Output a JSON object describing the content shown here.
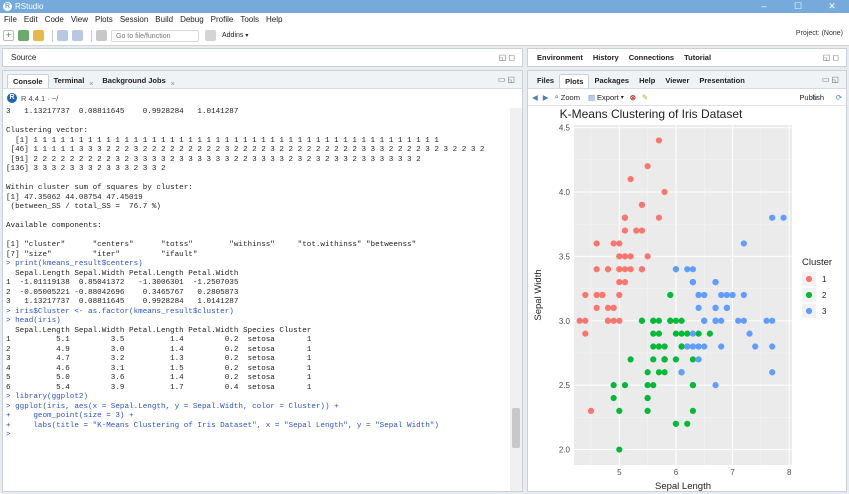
{
  "app": {
    "title": "RStudio",
    "window_controls": [
      "–",
      "☐",
      "✕"
    ]
  },
  "menu": [
    "File",
    "Edit",
    "Code",
    "View",
    "Plots",
    "Session",
    "Build",
    "Debug",
    "Profile",
    "Tools",
    "Help"
  ],
  "toolbar": {
    "goto_placeholder": "Go to file/function",
    "addins_label": "Addins",
    "project_label": "Project: (None)"
  },
  "source_pane": {
    "title": "Source"
  },
  "console_pane": {
    "tabs": [
      "Console",
      "Terminal",
      "Background Jobs"
    ],
    "r_version": "R 4.4.1 · ~/",
    "lines": [
      {
        "t": "3   1.13217737  0.08811645    0.9928284   1.0141287",
        "k": "out"
      },
      {
        "t": "",
        "k": "blank"
      },
      {
        "t": "Clustering vector:",
        "k": "out"
      },
      {
        "t": "  [1] 1 1 1 1 1 1 1 1 1 1 1 1 1 1 1 1 1 1 1 1 1 1 1 1 1 1 1 1 1 1 1 1 1 1 1 1 1 1 1 1 1 1 1 1 1",
        "k": "out"
      },
      {
        "t": " [46] 1 1 1 1 1 3 3 3 2 2 2 3 2 2 2 2 2 2 2 2 2 3 2 2 2 2 3 2 2 2 2 2 2 2 2 2 3 3 3 2 2 2 2 3 2 3 2 2 3 2",
        "k": "out"
      },
      {
        "t": " [91] 2 2 2 2 2 2 2 2 2 3 2 3 3 3 3 2 3 3 3 3 3 3 2 2 3 3 3 3 2 3 2 3 2 3 3 2 3 3 3 3 3 3 2",
        "k": "out"
      },
      {
        "t": "[136] 3 3 3 2 3 3 3 2 3 3 3 2 3 3 2",
        "k": "out"
      },
      {
        "t": "",
        "k": "blank"
      },
      {
        "t": "Within cluster sum of squares by cluster:",
        "k": "out"
      },
      {
        "t": "[1] 47.35062 44.08754 47.45019",
        "k": "out"
      },
      {
        "t": " (between_SS / total_SS =  76.7 %)",
        "k": "out"
      },
      {
        "t": "",
        "k": "blank"
      },
      {
        "t": "Available components:",
        "k": "out"
      },
      {
        "t": "",
        "k": "blank"
      },
      {
        "t": "[1] \"cluster\"      \"centers\"      \"totss\"        \"withinss\"     \"tot.withinss\" \"betweenss\"",
        "k": "out"
      },
      {
        "t": "[7] \"size\"         \"iter\"         \"ifault\"",
        "k": "out"
      },
      {
        "t": "> print(kmeans_result$centers)",
        "k": "in"
      },
      {
        "t": "  Sepal.Length Sepal.Width Petal.Length Petal.Width",
        "k": "out"
      },
      {
        "t": "1  -1.01119138  0.85041372   -1.3006301  -1.2507035",
        "k": "out"
      },
      {
        "t": "2  -0.05005221 -0.88042696    0.3465767   0.2805873",
        "k": "out"
      },
      {
        "t": "3   1.13217737  0.08811645    0.9928284   1.0141287",
        "k": "out"
      },
      {
        "t": "> iris$Cluster <- as.factor(kmeans_result$cluster)",
        "k": "in"
      },
      {
        "t": "> head(iris)",
        "k": "in"
      },
      {
        "t": "  Sepal.Length Sepal.Width Petal.Length Petal.Width Species Cluster",
        "k": "out"
      },
      {
        "t": "1          5.1         3.5          1.4         0.2  setosa       1",
        "k": "out"
      },
      {
        "t": "2          4.9         3.0          1.4         0.2  setosa       1",
        "k": "out"
      },
      {
        "t": "3          4.7         3.2          1.3         0.2  setosa       1",
        "k": "out"
      },
      {
        "t": "4          4.6         3.1          1.5         0.2  setosa       1",
        "k": "out"
      },
      {
        "t": "5          5.0         3.6          1.4         0.2  setosa       1",
        "k": "out"
      },
      {
        "t": "6          5.4         3.9          1.7         0.4  setosa       1",
        "k": "out"
      },
      {
        "t": "> library(ggplot2)",
        "k": "in"
      },
      {
        "t": "> ggplot(iris, aes(x = Sepal.Length, y = Sepal.Width, color = Cluster)) +",
        "k": "in"
      },
      {
        "t": "+     geom_point(size = 3) +",
        "k": "in"
      },
      {
        "t": "+     labs(title = \"K-Means Clustering of Iris Dataset\", x = \"Sepal Length\", y = \"Sepal Width\")",
        "k": "in"
      },
      {
        "t": ">",
        "k": "in"
      }
    ]
  },
  "env_pane": {
    "tabs": [
      "Environment",
      "History",
      "Connections",
      "Tutorial"
    ]
  },
  "files_pane": {
    "tabs": [
      "Files",
      "Plots",
      "Packages",
      "Help",
      "Viewer",
      "Presentation"
    ],
    "active_tab": "Plots",
    "zoom_label": "Zoom",
    "export_label": "Export",
    "publish_label": "Publish"
  },
  "chart_data": {
    "type": "scatter",
    "title": "K-Means Clustering of Iris Dataset",
    "xlabel": "Sepal Length",
    "ylabel": "Sepal Width",
    "xlim": [
      4.2,
      8.05
    ],
    "ylim": [
      1.88,
      4.52
    ],
    "x_ticks": [
      5,
      6,
      7,
      8
    ],
    "y_ticks": [
      2.0,
      2.5,
      3.0,
      3.5,
      4.0,
      4.5
    ],
    "y_tick_labels": [
      "2.0",
      "2.5",
      "3.0",
      "3.5",
      "4.0",
      "4.5"
    ],
    "grid": true,
    "legend_title": "Cluster",
    "legend_position": "right",
    "series": [
      {
        "name": "1",
        "color": "#f8766d",
        "points": [
          [
            5.1,
            3.5
          ],
          [
            4.9,
            3.0
          ],
          [
            4.7,
            3.2
          ],
          [
            4.6,
            3.1
          ],
          [
            5.0,
            3.6
          ],
          [
            5.4,
            3.9
          ],
          [
            4.6,
            3.4
          ],
          [
            5.0,
            3.4
          ],
          [
            4.4,
            2.9
          ],
          [
            4.9,
            3.1
          ],
          [
            5.4,
            3.7
          ],
          [
            4.8,
            3.4
          ],
          [
            4.8,
            3.0
          ],
          [
            4.3,
            3.0
          ],
          [
            5.8,
            4.0
          ],
          [
            5.7,
            4.4
          ],
          [
            5.4,
            3.9
          ],
          [
            5.1,
            3.5
          ],
          [
            5.7,
            3.8
          ],
          [
            5.1,
            3.8
          ],
          [
            5.4,
            3.4
          ],
          [
            5.1,
            3.7
          ],
          [
            4.6,
            3.6
          ],
          [
            5.1,
            3.3
          ],
          [
            4.8,
            3.4
          ],
          [
            5.0,
            3.0
          ],
          [
            5.0,
            3.4
          ],
          [
            5.2,
            3.5
          ],
          [
            5.2,
            3.4
          ],
          [
            4.7,
            3.2
          ],
          [
            4.8,
            3.1
          ],
          [
            5.4,
            3.4
          ],
          [
            5.2,
            4.1
          ],
          [
            5.5,
            4.2
          ],
          [
            4.9,
            3.1
          ],
          [
            5.0,
            3.2
          ],
          [
            5.5,
            3.5
          ],
          [
            4.9,
            3.6
          ],
          [
            4.4,
            3.0
          ],
          [
            5.1,
            3.4
          ],
          [
            5.0,
            3.5
          ],
          [
            4.5,
            2.3
          ],
          [
            4.4,
            3.2
          ],
          [
            5.0,
            3.5
          ],
          [
            5.1,
            3.8
          ],
          [
            4.8,
            3.0
          ],
          [
            5.1,
            3.8
          ],
          [
            4.6,
            3.2
          ],
          [
            5.3,
            3.7
          ],
          [
            5.0,
            3.3
          ]
        ]
      },
      {
        "name": "2",
        "color": "#00ba38",
        "points": [
          [
            5.5,
            2.3
          ],
          [
            5.7,
            2.8
          ],
          [
            4.9,
            2.4
          ],
          [
            6.6,
            2.9
          ],
          [
            5.2,
            2.7
          ],
          [
            5.0,
            2.0
          ],
          [
            5.9,
            3.0
          ],
          [
            6.0,
            2.2
          ],
          [
            6.1,
            2.9
          ],
          [
            5.6,
            2.9
          ],
          [
            5.6,
            3.0
          ],
          [
            5.8,
            2.7
          ],
          [
            6.2,
            2.2
          ],
          [
            5.6,
            2.5
          ],
          [
            5.9,
            3.2
          ],
          [
            6.1,
            2.8
          ],
          [
            6.3,
            2.5
          ],
          [
            6.1,
            2.8
          ],
          [
            6.4,
            2.9
          ],
          [
            6.0,
            2.9
          ],
          [
            5.7,
            2.6
          ],
          [
            5.5,
            2.4
          ],
          [
            5.5,
            2.4
          ],
          [
            5.8,
            2.7
          ],
          [
            6.0,
            2.7
          ],
          [
            5.4,
            3.0
          ],
          [
            6.0,
            3.4
          ],
          [
            6.3,
            2.3
          ],
          [
            5.6,
            3.0
          ],
          [
            5.5,
            2.5
          ],
          [
            5.5,
            2.6
          ],
          [
            6.1,
            3.0
          ],
          [
            5.8,
            2.6
          ],
          [
            5.0,
            2.3
          ],
          [
            5.6,
            2.7
          ],
          [
            5.7,
            3.0
          ],
          [
            5.7,
            2.9
          ],
          [
            6.2,
            2.9
          ],
          [
            5.1,
            2.5
          ],
          [
            5.7,
            2.8
          ],
          [
            5.8,
            2.7
          ],
          [
            4.9,
            2.5
          ],
          [
            6.0,
            2.2
          ],
          [
            6.3,
            2.7
          ],
          [
            6.2,
            2.8
          ],
          [
            6.1,
            2.6
          ],
          [
            5.6,
            2.8
          ],
          [
            6.3,
            2.5
          ],
          [
            6.0,
            3.0
          ],
          [
            5.8,
            2.8
          ],
          [
            5.9,
            3.0
          ],
          [
            5.8,
            2.7
          ],
          [
            6.3,
            2.8
          ],
          [
            5.4,
            3.0
          ]
        ]
      },
      {
        "name": "3",
        "color": "#619cff",
        "points": [
          [
            7.0,
            3.2
          ],
          [
            6.4,
            3.2
          ],
          [
            6.9,
            3.1
          ],
          [
            6.5,
            2.8
          ],
          [
            6.3,
            3.3
          ],
          [
            6.7,
            3.1
          ],
          [
            6.3,
            3.3
          ],
          [
            6.7,
            3.0
          ],
          [
            6.8,
            2.8
          ],
          [
            6.7,
            3.0
          ],
          [
            6.0,
            3.4
          ],
          [
            6.7,
            3.1
          ],
          [
            6.3,
            3.3
          ],
          [
            7.1,
            3.0
          ],
          [
            6.3,
            2.9
          ],
          [
            6.5,
            3.0
          ],
          [
            7.6,
            3.0
          ],
          [
            7.3,
            2.9
          ],
          [
            6.7,
            2.5
          ],
          [
            7.2,
            3.6
          ],
          [
            6.5,
            3.2
          ],
          [
            6.4,
            2.7
          ],
          [
            6.8,
            3.0
          ],
          [
            6.4,
            3.2
          ],
          [
            6.5,
            3.0
          ],
          [
            7.7,
            3.8
          ],
          [
            7.7,
            2.6
          ],
          [
            6.9,
            3.2
          ],
          [
            7.7,
            2.8
          ],
          [
            6.7,
            3.3
          ],
          [
            7.2,
            3.2
          ],
          [
            6.2,
            2.8
          ],
          [
            6.4,
            2.8
          ],
          [
            7.2,
            3.0
          ],
          [
            7.4,
            2.8
          ],
          [
            7.9,
            3.8
          ],
          [
            6.4,
            2.8
          ],
          [
            6.3,
            2.8
          ],
          [
            6.1,
            2.6
          ],
          [
            7.7,
            3.0
          ],
          [
            6.3,
            3.4
          ],
          [
            6.4,
            3.1
          ],
          [
            6.9,
            3.1
          ],
          [
            6.7,
            3.1
          ],
          [
            6.9,
            3.1
          ],
          [
            6.8,
            3.2
          ],
          [
            6.7,
            3.3
          ],
          [
            6.7,
            3.0
          ],
          [
            6.5,
            3.0
          ],
          [
            6.2,
            3.4
          ]
        ]
      }
    ]
  }
}
